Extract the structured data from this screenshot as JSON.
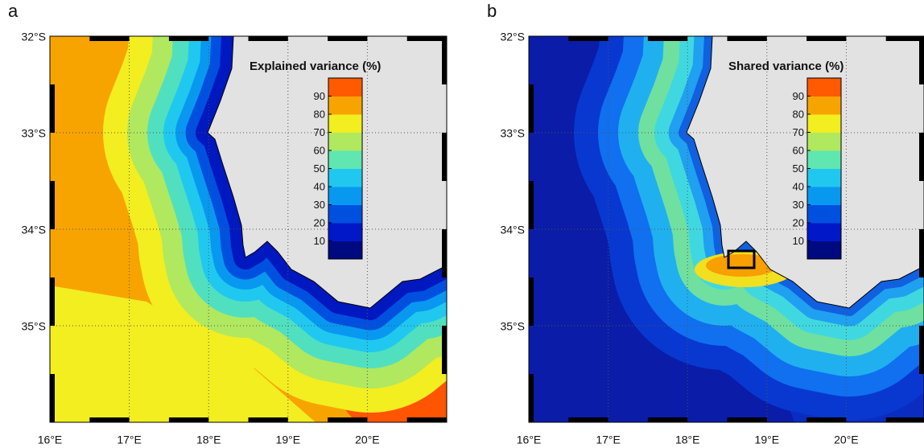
{
  "panels": [
    {
      "label": "a",
      "title": "Explained variance (%)",
      "colorbar": {
        "ticks": [
          10,
          20,
          30,
          40,
          50,
          60,
          70,
          80,
          90
        ],
        "colors": [
          "#000a80",
          "#0018c8",
          "#0050e0",
          "#0898f0",
          "#20c8f0",
          "#60e6b0",
          "#b0e860",
          "#f2ee20",
          "#f8a400",
          "#ff5a00"
        ]
      }
    },
    {
      "label": "b",
      "title": "Shared variance (%)",
      "colorbar": {
        "ticks": [
          10,
          20,
          30,
          40,
          50,
          60,
          70,
          80,
          90
        ],
        "colors": [
          "#000a80",
          "#0018c8",
          "#0050e0",
          "#0898f0",
          "#20c8f0",
          "#60e6b0",
          "#b0e860",
          "#f2ee20",
          "#f8a400",
          "#ff5a00"
        ]
      }
    }
  ],
  "lat_labels": [
    {
      "value": -32,
      "label": "32°S"
    },
    {
      "value": -33,
      "label": "33°S"
    },
    {
      "value": -34,
      "label": "34°S"
    },
    {
      "value": -35,
      "label": "35°S"
    }
  ],
  "lon_labels": [
    {
      "value": 16,
      "label": "16°E"
    },
    {
      "value": 17,
      "label": "17°E"
    },
    {
      "value": 18,
      "label": "18°E"
    },
    {
      "value": 19,
      "label": "19°E"
    },
    {
      "value": 20,
      "label": "20°E"
    }
  ]
}
